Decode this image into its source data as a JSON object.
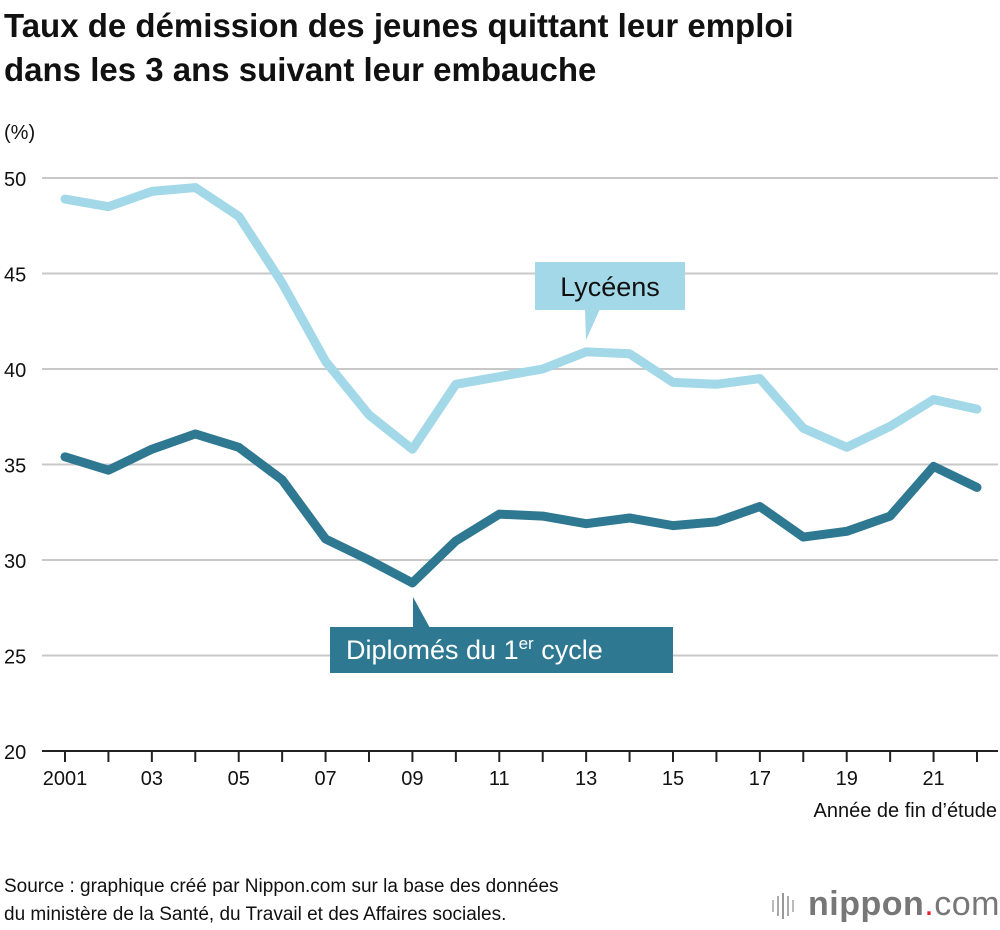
{
  "title_line1": "Taux de démission des jeunes quittant leur emploi",
  "title_line2": "dans les 3 ans suivant leur embauche",
  "source_line1": "Source : graphique créé par Nippon.com sur la base des données",
  "source_line2": "du  ministère de la Santé, du Travail et des Affaires sociales.",
  "logo": {
    "main": "nippon",
    "dot": ".",
    "suffix": "com"
  },
  "chart_data": {
    "type": "line",
    "title": "Taux de démission des jeunes quittant leur emploi dans les 3 ans suivant leur embauche",
    "ylabel": "(%)",
    "xlabel": "Année de fin d’étude",
    "ylim": [
      20,
      50
    ],
    "yticks": [
      20,
      25,
      30,
      35,
      40,
      45,
      50
    ],
    "x": [
      2001,
      2002,
      2003,
      2004,
      2005,
      2006,
      2007,
      2008,
      2009,
      2010,
      2011,
      2012,
      2013,
      2014,
      2015,
      2016,
      2017,
      2018,
      2019,
      2020,
      2021,
      2022
    ],
    "xtick_labels": [
      "2001",
      "03",
      "05",
      "07",
      "09",
      "11",
      "13",
      "15",
      "17",
      "19",
      "21"
    ],
    "grid": true,
    "series": [
      {
        "name": "Lycéens",
        "color": "#a2d8e8",
        "values": [
          48.9,
          48.5,
          49.3,
          49.5,
          48.0,
          44.5,
          40.4,
          37.6,
          35.8,
          39.2,
          39.6,
          40.0,
          40.9,
          40.8,
          39.3,
          39.2,
          39.5,
          36.9,
          35.9,
          37.0,
          38.4,
          37.9
        ]
      },
      {
        "name": "Diplomés du 1er cycle",
        "label_main": "Diplomés du 1",
        "label_sup": "er",
        "label_tail": " cycle",
        "color": "#2f7891",
        "values": [
          35.4,
          34.7,
          35.8,
          36.6,
          35.9,
          34.2,
          31.1,
          30.0,
          28.8,
          31.0,
          32.4,
          32.3,
          31.9,
          32.2,
          31.8,
          32.0,
          32.8,
          31.2,
          31.5,
          32.3,
          34.9,
          33.8
        ]
      }
    ]
  }
}
